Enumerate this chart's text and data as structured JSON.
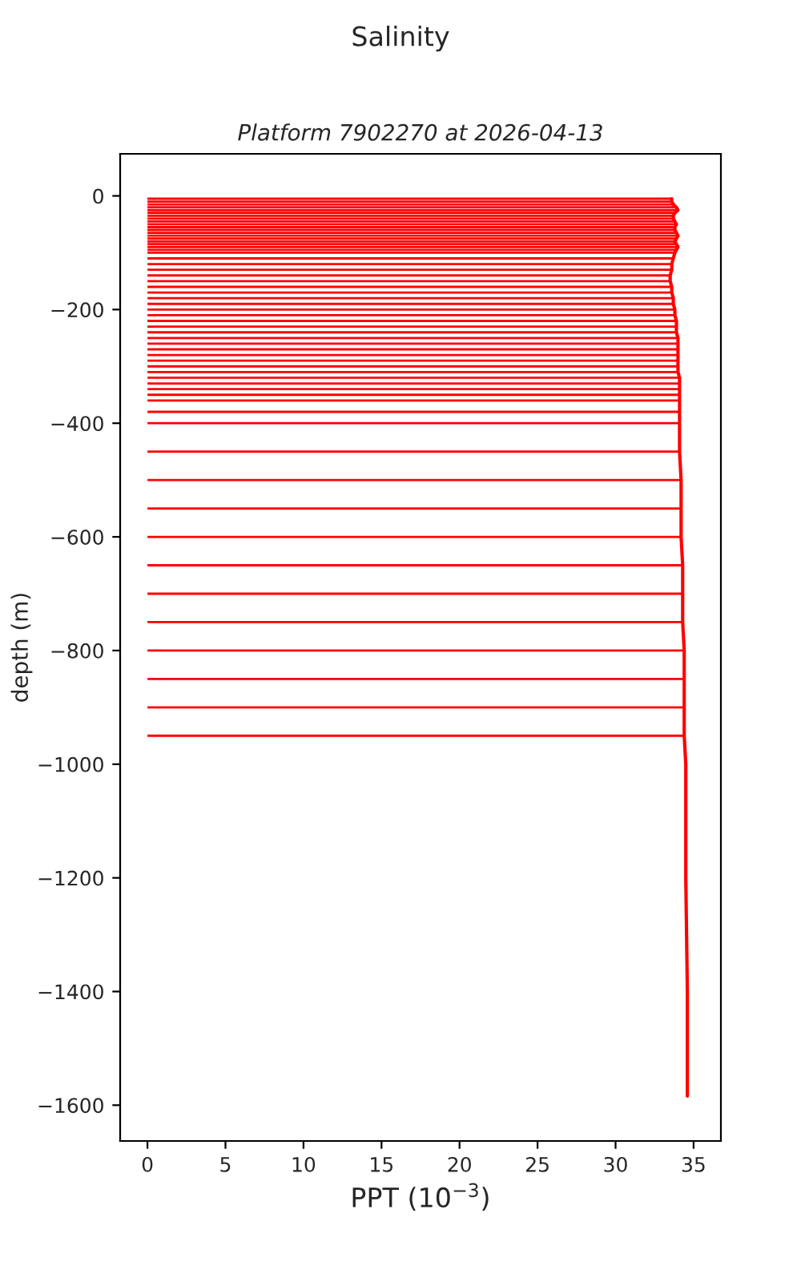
{
  "chart_data": {
    "type": "bar",
    "orientation": "horizontal",
    "title": "Salinity",
    "subtitle": "Platform 7902270 at 2026-04-13",
    "xlabel": "PPT (10$^{−3}$)",
    "ylabel": "depth (m)",
    "series": [
      {
        "color": "#ff0000",
        "x": [
          -5,
          -10,
          -15,
          -20,
          -25,
          -30,
          -35,
          -40,
          -45,
          -50,
          -55,
          -60,
          -65,
          -70,
          -75,
          -80,
          -85,
          -90,
          -95,
          -100,
          -110,
          -120,
          -130,
          -140,
          -150,
          -160,
          -170,
          -180,
          -190,
          -200,
          -210,
          -220,
          -230,
          -240,
          -250,
          -260,
          -270,
          -280,
          -290,
          -300,
          -310,
          -320,
          -330,
          -340,
          -350,
          -360,
          -380,
          -400,
          -450,
          -500,
          -550,
          -600,
          -650,
          -700,
          -750,
          -800,
          -850,
          -900,
          -950
        ],
        "values": [
          33.6,
          33.6,
          33.7,
          33.9,
          34.0,
          33.8,
          33.7,
          33.7,
          33.8,
          33.9,
          33.8,
          33.8,
          33.9,
          34.0,
          33.9,
          33.8,
          33.9,
          34.0,
          33.9,
          33.8,
          33.7,
          33.6,
          33.6,
          33.5,
          33.5,
          33.6,
          33.6,
          33.7,
          33.7,
          33.8,
          33.8,
          33.9,
          33.9,
          33.9,
          34.0,
          34.0,
          34.0,
          34.0,
          34.0,
          34.0,
          34.0,
          34.1,
          34.1,
          34.1,
          34.1,
          34.1,
          34.1,
          34.1,
          34.1,
          34.2,
          34.2,
          34.2,
          34.3,
          34.3,
          34.3,
          34.4,
          34.4,
          34.4,
          34.4
        ]
      },
      {
        "type": "line",
        "color": "#ff0000",
        "x": [
          -5,
          -10,
          -15,
          -20,
          -25,
          -30,
          -35,
          -40,
          -45,
          -50,
          -55,
          -60,
          -65,
          -70,
          -75,
          -80,
          -85,
          -90,
          -95,
          -100,
          -110,
          -120,
          -130,
          -140,
          -150,
          -160,
          -170,
          -180,
          -190,
          -200,
          -210,
          -220,
          -230,
          -240,
          -250,
          -260,
          -270,
          -280,
          -290,
          -300,
          -310,
          -320,
          -330,
          -340,
          -350,
          -360,
          -380,
          -400,
          -450,
          -500,
          -550,
          -600,
          -650,
          -700,
          -750,
          -800,
          -850,
          -900,
          -950,
          -1000,
          -1200,
          -1400,
          -1584
        ],
        "values": [
          33.6,
          33.6,
          33.7,
          33.9,
          34.0,
          33.8,
          33.7,
          33.7,
          33.8,
          33.9,
          33.8,
          33.8,
          33.9,
          34.0,
          33.9,
          33.8,
          33.9,
          34.0,
          33.9,
          33.8,
          33.7,
          33.6,
          33.6,
          33.5,
          33.5,
          33.6,
          33.6,
          33.7,
          33.7,
          33.8,
          33.8,
          33.9,
          33.9,
          33.9,
          34.0,
          34.0,
          34.0,
          34.0,
          34.0,
          34.0,
          34.0,
          34.1,
          34.1,
          34.1,
          34.1,
          34.1,
          34.1,
          34.1,
          34.1,
          34.2,
          34.2,
          34.2,
          34.3,
          34.3,
          34.3,
          34.4,
          34.4,
          34.4,
          34.4,
          34.5,
          34.5,
          34.6,
          34.6
        ]
      }
    ],
    "xlim": [
      -1.75,
      36.75
    ],
    "ylim": [
      -1663,
      74
    ],
    "xticks": [
      0,
      5,
      10,
      15,
      20,
      25,
      30,
      35
    ],
    "yticks": [
      {
        "value": -1600,
        "label": "−1600"
      },
      {
        "value": -1400,
        "label": "−1400"
      },
      {
        "value": -1200,
        "label": "−1200"
      },
      {
        "value": -1000,
        "label": "−1000"
      },
      {
        "value": -800,
        "label": "−800"
      },
      {
        "value": -600,
        "label": "−600"
      },
      {
        "value": -400,
        "label": "−400"
      },
      {
        "value": -200,
        "label": "−200"
      },
      0
    ]
  }
}
